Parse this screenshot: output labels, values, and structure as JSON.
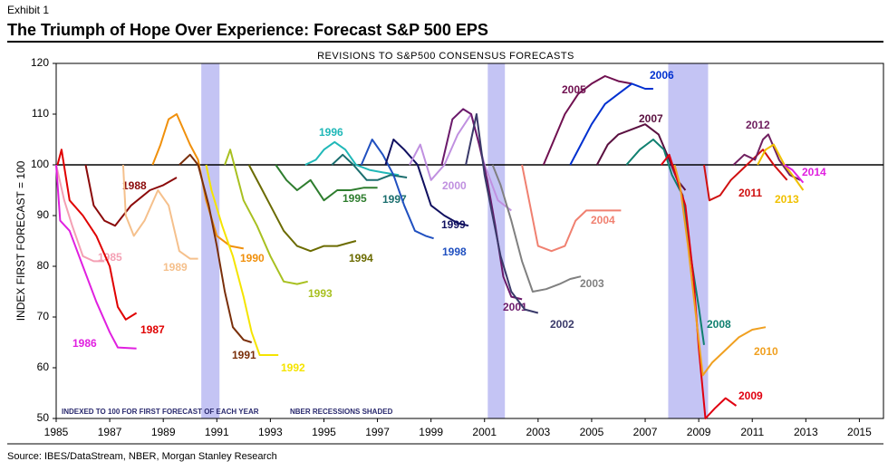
{
  "exhibit": "Exhibit 1",
  "title": "The Triumph of Hope Over Experience: Forecast S&P 500 EPS",
  "source": "Source: IBES/DataStream, NBER, Morgan Stanley Research",
  "chart_data": {
    "type": "line",
    "subtitle": "REVISIONS TO S&P500 CONSENSUS FORECASTS",
    "y_label": "INDEX FIRST FORECAST = 100",
    "annotations": [
      "INDEXED TO 100 FOR FIRST FORECAST OF EACH YEAR",
      "NBER RECESSIONS SHADED"
    ],
    "xlim": [
      1985,
      2015.9
    ],
    "ylim": [
      50,
      120
    ],
    "xticks": [
      1985,
      1987,
      1989,
      1991,
      1993,
      1995,
      1997,
      1999,
      2001,
      2003,
      2005,
      2007,
      2009,
      2011,
      2013,
      2015
    ],
    "yticks": [
      50,
      60,
      70,
      80,
      90,
      100,
      110,
      120
    ],
    "reference_line": 100,
    "recessions": [
      [
        1990.42,
        1991.1
      ],
      [
        2001.12,
        2001.76
      ],
      [
        2007.86,
        2009.35
      ]
    ],
    "recession_color": "#c4c4f4",
    "series": [
      {
        "name": "1985",
        "color": "#f4a0b4",
        "x": [
          1985,
          1985.3,
          1985.6,
          1986,
          1986.4,
          1986.8
        ],
        "values": [
          100,
          93,
          88,
          82,
          81,
          81
        ]
      },
      {
        "name": "1986",
        "color": "#e020e0",
        "x": [
          1985,
          1985.15,
          1985.5,
          1986,
          1986.5,
          1987,
          1987.3,
          1988
        ],
        "values": [
          100,
          89,
          87,
          80,
          73,
          67,
          64,
          63.8
        ]
      },
      {
        "name": "1987",
        "color": "#e00000",
        "x": [
          1985.05,
          1985.2,
          1985.5,
          1986,
          1986.5,
          1987,
          1987.3,
          1987.6,
          1988
        ],
        "values": [
          100,
          103,
          93,
          90,
          86,
          80,
          72,
          69.5,
          70.8
        ]
      },
      {
        "name": "1988",
        "color": "#8b0a0a",
        "x": [
          1986.1,
          1986.4,
          1986.8,
          1987.2,
          1987.8,
          1988.5,
          1989,
          1989.5
        ],
        "values": [
          100,
          92,
          89,
          88,
          92,
          95,
          96,
          97.5
        ]
      },
      {
        "name": "1989",
        "color": "#f5c08c",
        "x": [
          1987.5,
          1987.6,
          1987.9,
          1988.3,
          1988.8,
          1989.2,
          1989.6,
          1990,
          1990.3
        ],
        "values": [
          100,
          90,
          86,
          89,
          95,
          92,
          83,
          81.5,
          81.5
        ]
      },
      {
        "name": "1990",
        "color": "#f0900c",
        "x": [
          1988.6,
          1988.9,
          1989.2,
          1989.5,
          1990,
          1990.3,
          1990.6,
          1991,
          1991.5,
          1992
        ],
        "values": [
          100,
          104,
          109,
          110,
          104,
          101,
          93,
          86,
          84,
          83.5
        ]
      },
      {
        "name": "1991",
        "color": "#7a2f0a",
        "x": [
          1989.6,
          1990,
          1990.3,
          1990.7,
          1991,
          1991.3,
          1991.6,
          1992,
          1992.3
        ],
        "values": [
          100,
          102,
          100,
          92,
          84,
          75,
          68,
          65.5,
          65
        ]
      },
      {
        "name": "1992",
        "color": "#f5e400",
        "x": [
          1990.6,
          1990.8,
          1991.2,
          1991.6,
          1992,
          1992.3,
          1992.6,
          1993.3
        ],
        "values": [
          100,
          95,
          88,
          82,
          74,
          67,
          62.5,
          62.5
        ]
      },
      {
        "name": "1993",
        "color": "#a8c020",
        "x": [
          1991.3,
          1991.5,
          1992,
          1992.5,
          1993,
          1993.5,
          1994,
          1994.4
        ],
        "values": [
          100,
          103,
          93,
          88,
          82,
          77,
          76.5,
          77
        ]
      },
      {
        "name": "1994",
        "color": "#6b6b00",
        "x": [
          1992.2,
          1992.6,
          1993,
          1993.5,
          1994,
          1994.5,
          1995,
          1995.5,
          1996.2
        ],
        "values": [
          100,
          96,
          92,
          87,
          84,
          83,
          84,
          84,
          85
        ]
      },
      {
        "name": "1995",
        "color": "#2e7d2e",
        "x": [
          1993.2,
          1993.6,
          1994,
          1994.5,
          1995,
          1995.5,
          1996,
          1996.5,
          1997
        ],
        "values": [
          100,
          97,
          95,
          97,
          93,
          95,
          95,
          95.5,
          95.5
        ]
      },
      {
        "name": "1996",
        "color": "#20b8b8",
        "x": [
          1994.3,
          1994.7,
          1995,
          1995.4,
          1995.8,
          1996.2,
          1996.7,
          1997.2,
          1997.8
        ],
        "values": [
          100,
          101,
          103,
          104.5,
          103,
          100,
          99,
          98.5,
          98
        ]
      },
      {
        "name": "1997",
        "color": "#1b6e6e",
        "x": [
          1995.3,
          1995.7,
          1996.1,
          1996.6,
          1997,
          1997.5,
          1998.1
        ],
        "values": [
          100,
          102,
          100,
          97,
          97,
          98,
          97.5
        ]
      },
      {
        "name": "1998",
        "color": "#2050c0",
        "x": [
          1996.4,
          1996.8,
          1997.2,
          1997.6,
          1998,
          1998.4,
          1998.8,
          1999.1
        ],
        "values": [
          100,
          105,
          102,
          98,
          92,
          87,
          86,
          85.5
        ]
      },
      {
        "name": "1999",
        "color": "#101060",
        "x": [
          1997.3,
          1997.6,
          1998,
          1998.5,
          1999,
          1999.5,
          2000,
          2000.4
        ],
        "values": [
          100,
          105,
          103,
          100,
          92,
          90,
          88.5,
          88
        ]
      },
      {
        "name": "2000",
        "color": "#c090e0",
        "x": [
          1998.2,
          1998.6,
          1999,
          1999.5,
          2000,
          2000.5,
          2001,
          2001.5,
          2002
        ],
        "values": [
          100,
          104,
          97,
          100,
          106,
          110,
          100,
          93,
          91
        ]
      },
      {
        "name": "2001",
        "color": "#6b1a6b",
        "x": [
          1999.4,
          1999.8,
          2000.2,
          2000.5,
          2000.8,
          2001.1,
          2001.4,
          2001.7,
          2002,
          2002.4
        ],
        "values": [
          100,
          109,
          111,
          110,
          104,
          97,
          88,
          78,
          74,
          73.5
        ]
      },
      {
        "name": "2002",
        "color": "#3a3a6a",
        "x": [
          2000.3,
          2000.7,
          2001,
          2001.3,
          2001.6,
          2002,
          2002.5,
          2003
        ],
        "values": [
          100,
          110,
          98,
          90,
          82,
          75,
          71.5,
          70.8
        ]
      },
      {
        "name": "2003",
        "color": "#808080",
        "x": [
          2001.3,
          2001.6,
          2002,
          2002.4,
          2002.8,
          2003.3,
          2003.8,
          2004.2,
          2004.6
        ],
        "values": [
          100,
          96,
          89,
          81,
          75,
          75.5,
          76.5,
          77.5,
          78
        ]
      },
      {
        "name": "2004",
        "color": "#f08070",
        "x": [
          2002.4,
          2002.7,
          2003,
          2003.5,
          2004,
          2004.4,
          2004.8,
          2005.4,
          2006.1
        ],
        "values": [
          100,
          92,
          84,
          83,
          84,
          89,
          91,
          91,
          91
        ]
      },
      {
        "name": "2005",
        "color": "#701050",
        "x": [
          2003.2,
          2003.6,
          2004,
          2004.5,
          2005,
          2005.5,
          2006,
          2006.5
        ],
        "values": [
          100,
          105,
          110,
          114,
          116,
          117.5,
          116.5,
          116
        ]
      },
      {
        "name": "2006",
        "color": "#0030d0",
        "x": [
          2004.2,
          2004.6,
          2005,
          2005.5,
          2006,
          2006.5,
          2007,
          2007.3
        ],
        "values": [
          100,
          104,
          108,
          112,
          114,
          116,
          115,
          115
        ]
      },
      {
        "name": "2007",
        "color": "#5a1040",
        "x": [
          2005.2,
          2005.6,
          2006,
          2006.5,
          2007,
          2007.5,
          2007.9,
          2008.2,
          2008.5
        ],
        "values": [
          100,
          104,
          106,
          107,
          108,
          106,
          101,
          97,
          95
        ]
      },
      {
        "name": "2008",
        "color": "#108070",
        "x": [
          2006.3,
          2006.8,
          2007.3,
          2007.7,
          2008,
          2008.4,
          2008.7,
          2009,
          2009.2
        ],
        "values": [
          100,
          103,
          105,
          103,
          98,
          94,
          82,
          72,
          64.5
        ]
      },
      {
        "name": "2009",
        "color": "#e00010",
        "x": [
          2007.6,
          2007.9,
          2008.2,
          2008.5,
          2008.8,
          2009,
          2009.25,
          2009.6,
          2010,
          2010.4
        ],
        "values": [
          100,
          102,
          97,
          92,
          78,
          64,
          50,
          52,
          54,
          52.5
        ]
      },
      {
        "name": "2010",
        "color": "#f0a020",
        "x": [
          2008.1,
          2008.3,
          2008.6,
          2008.9,
          2009.15,
          2009.5,
          2010,
          2010.5,
          2011,
          2011.5
        ],
        "values": [
          100,
          96,
          84,
          70,
          58.5,
          61,
          63.5,
          66,
          67.5,
          68
        ]
      },
      {
        "name": "2011",
        "color": "#d01010",
        "x": [
          2009.2,
          2009.4,
          2009.8,
          2010.2,
          2010.6,
          2011,
          2011.4,
          2011.8,
          2012.3
        ],
        "values": [
          100,
          93,
          94,
          97,
          99,
          101,
          103,
          100,
          97
        ]
      },
      {
        "name": "2012",
        "color": "#702060",
        "x": [
          2010.3,
          2010.7,
          2011.1,
          2011.4,
          2011.6,
          2012,
          2012.4,
          2012.8
        ],
        "values": [
          100,
          102,
          101,
          105,
          106,
          101,
          98,
          97
        ]
      },
      {
        "name": "2013",
        "color": "#f0c000",
        "x": [
          2011.2,
          2011.5,
          2011.8,
          2012.2,
          2012.5,
          2012.9
        ],
        "values": [
          100,
          103,
          104,
          100,
          98,
          95
        ]
      },
      {
        "name": "2014",
        "color": "#e020e0",
        "x": [
          2012.2,
          2012.5,
          2012.9
        ],
        "values": [
          100,
          99,
          96.5
        ]
      }
    ]
  }
}
